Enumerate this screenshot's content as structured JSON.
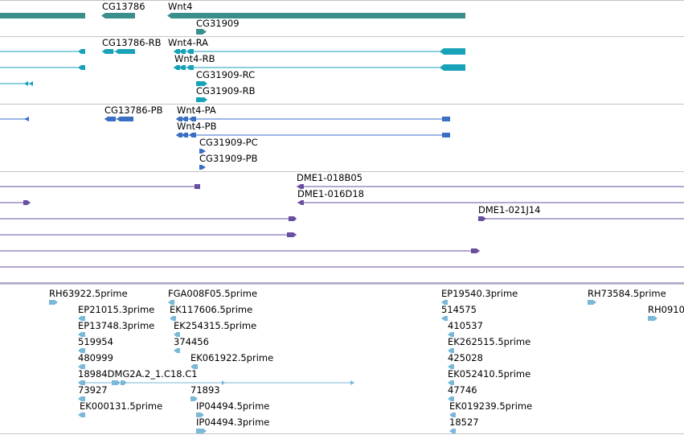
{
  "colors": {
    "gene": "#3a8f8c",
    "transcript": "#17a2b8",
    "protein": "#3a6fc4",
    "clone": "#6a4fa0",
    "est": "#7ab8d8",
    "separator": "#c4c4c4"
  },
  "gene_track": {
    "labels": [
      "CG13786",
      "Wnt4",
      "CG31909"
    ]
  },
  "transcript_track": {
    "labels": [
      "CG13786-RB",
      "Wnt4-RA",
      "Wnt4-RB",
      "CG31909-RC",
      "CG31909-RB"
    ]
  },
  "protein_track": {
    "labels": [
      "CG13786-PB",
      "Wnt4-PA",
      "Wnt4-PB",
      "CG31909-PC",
      "CG31909-PB"
    ]
  },
  "clone_track": {
    "labels": [
      "DME1-018B05",
      "DME1-016D18",
      "DME1-021J14"
    ]
  },
  "est_track": {
    "labels": [
      "RH63922.5prime",
      "FGA008F05.5prime",
      "EP19540.3prime",
      "RH73584.5prime",
      "EP21015.3prime",
      "EK117606.5prime",
      "514575",
      "RH0910",
      "EP13748.3prime",
      "EK254315.5prime",
      "410537",
      "519954",
      "374456",
      "EK262515.5prime",
      "480999",
      "EK061922.5prime",
      "425028",
      "18984DMG2A.2_1.C18.C1",
      "EK052410.5prime",
      "73927",
      "71893",
      "47746",
      "EK000131.5prime",
      "IP04494.5prime",
      "EK019239.5prime",
      "IP04494.3prime",
      "18527"
    ]
  }
}
